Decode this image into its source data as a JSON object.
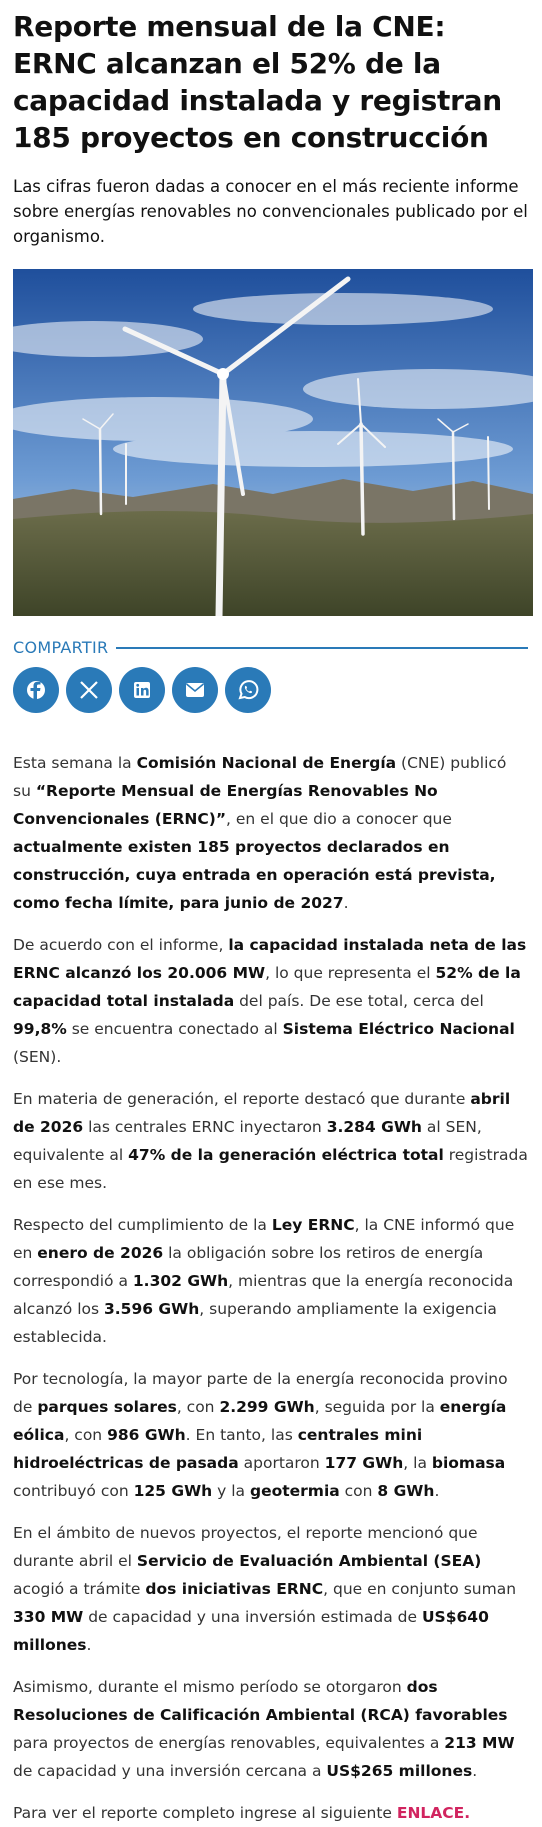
{
  "header": {
    "title": "Reporte mensual de la CNE: ERNC alcanzan el 52% de la capacidad instalada y registran 185 proyectos en construcción",
    "subtitle": "Las cifras fueron dadas a conocer en el más reciente informe sobre energías renovables no convencionales publicado por el organismo."
  },
  "share": {
    "label": "COMPARTIR"
  },
  "body": {
    "paragraphs": [
      {
        "runs": [
          {
            "text": "Esta semana la "
          },
          {
            "text": "Comisión Nacional de Energía",
            "bold": true
          },
          {
            "text": " (CNE) publicó su "
          },
          {
            "text": "“Reporte Mensual de Energías Renovables No Convencionales (ERNC)”",
            "bold": true
          },
          {
            "text": ", en el que dio a conocer que "
          },
          {
            "text": "actualmente existen 185 proyectos declarados en construcción, cuya entrada en operación está prevista, como fecha límite, para junio de 2027",
            "bold": true
          },
          {
            "text": "."
          }
        ]
      },
      {
        "runs": [
          {
            "text": "De acuerdo con el informe, "
          },
          {
            "text": "la capacidad instalada neta de las ERNC alcanzó los 20.006 MW",
            "bold": true
          },
          {
            "text": ", lo que representa el "
          },
          {
            "text": "52% de la capacidad total instalada",
            "bold": true
          },
          {
            "text": " del país. De ese total, cerca del "
          },
          {
            "text": "99,8%",
            "bold": true
          },
          {
            "text": " se encuentra conectado al "
          },
          {
            "text": "Sistema Eléctrico Nacional",
            "bold": true
          },
          {
            "text": " (SEN)."
          }
        ]
      },
      {
        "runs": [
          {
            "text": "En materia de generación, el reporte destacó que durante "
          },
          {
            "text": "abril de 2026",
            "bold": true
          },
          {
            "text": " las centrales ERNC inyectaron "
          },
          {
            "text": "3.284 GWh",
            "bold": true
          },
          {
            "text": " al SEN, equivalente al "
          },
          {
            "text": "47% de la generación eléctrica total",
            "bold": true
          },
          {
            "text": " registrada en ese mes."
          }
        ]
      },
      {
        "runs": [
          {
            "text": "Respecto del cumplimiento de la "
          },
          {
            "text": "Ley ERNC",
            "bold": true
          },
          {
            "text": ", la CNE informó que en "
          },
          {
            "text": "enero de 2026",
            "bold": true
          },
          {
            "text": " la obligación sobre los retiros de energía correspondió a "
          },
          {
            "text": "1.302 GWh",
            "bold": true
          },
          {
            "text": ", mientras que la energía reconocida alcanzó los "
          },
          {
            "text": "3.596 GWh",
            "bold": true
          },
          {
            "text": ", superando ampliamente la exigencia establecida."
          }
        ]
      },
      {
        "runs": [
          {
            "text": "Por tecnología, la mayor parte de la energía reconocida provino de "
          },
          {
            "text": "parques solares",
            "bold": true
          },
          {
            "text": ", con "
          },
          {
            "text": "2.299 GWh",
            "bold": true
          },
          {
            "text": ", seguida por la "
          },
          {
            "text": "energía eólica",
            "bold": true
          },
          {
            "text": ", con "
          },
          {
            "text": "986 GWh",
            "bold": true
          },
          {
            "text": ". En tanto, las "
          },
          {
            "text": "centrales mini hidroeléctricas de pasada",
            "bold": true
          },
          {
            "text": " aportaron "
          },
          {
            "text": "177 GWh",
            "bold": true
          },
          {
            "text": ", la "
          },
          {
            "text": "biomasa",
            "bold": true
          },
          {
            "text": " contribuyó con "
          },
          {
            "text": "125 GWh",
            "bold": true
          },
          {
            "text": " y la "
          },
          {
            "text": "geotermia",
            "bold": true
          },
          {
            "text": " con "
          },
          {
            "text": "8 GWh",
            "bold": true
          },
          {
            "text": "."
          }
        ]
      },
      {
        "runs": [
          {
            "text": "En el ámbito de nuevos proyectos, el reporte mencionó que durante abril el "
          },
          {
            "text": "Servicio de Evaluación Ambiental (SEA)",
            "bold": true
          },
          {
            "text": " acogió a trámite "
          },
          {
            "text": "dos iniciativas ERNC",
            "bold": true
          },
          {
            "text": ", que en conjunto suman "
          },
          {
            "text": "330 MW",
            "bold": true
          },
          {
            "text": " de capacidad y una inversión estimada de "
          },
          {
            "text": "US$640 millones",
            "bold": true
          },
          {
            "text": "."
          }
        ]
      },
      {
        "runs": [
          {
            "text": "Asimismo, durante el mismo período se otorgaron "
          },
          {
            "text": "dos Resoluciones de Calificación Ambiental (RCA) favorables",
            "bold": true
          },
          {
            "text": " para proyectos de energías renovables, equivalentes a "
          },
          {
            "text": "213 MW",
            "bold": true
          },
          {
            "text": " de capacidad y una inversión cercana a "
          },
          {
            "text": "US$265 millones",
            "bold": true
          },
          {
            "text": "."
          }
        ]
      },
      {
        "runs": [
          {
            "text": "Para ver el reporte completo ingrese al siguiente "
          },
          {
            "text": "ENLACE.",
            "bold": true,
            "link": true
          }
        ]
      }
    ]
  }
}
